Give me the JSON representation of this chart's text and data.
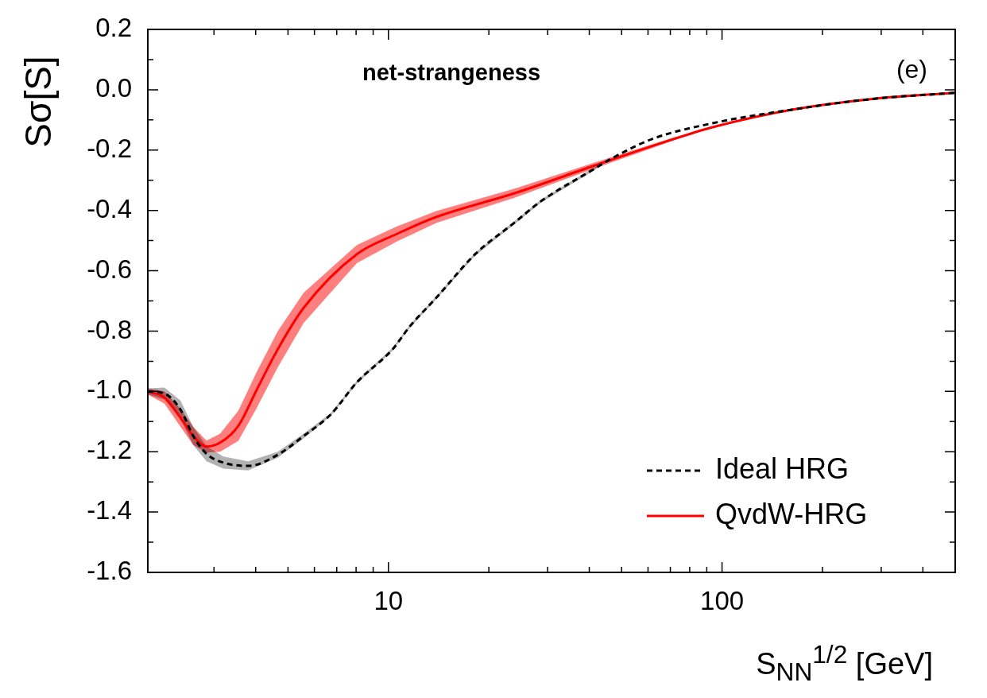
{
  "chart_data": {
    "type": "line",
    "xlabel": "S$_{NN}$$^{1/2}$ [GeV]",
    "ylabel": "Sσ[S]",
    "annotations": [
      "net-strangeness",
      "(e)"
    ],
    "log": "x",
    "legend": "bottom right",
    "marker": "none",
    "xlim": [
      1.9,
      500
    ],
    "ylim": [
      -1.6,
      0.2
    ],
    "xticks": [
      {
        "value": 3,
        "label": null
      },
      {
        "value": 4,
        "label": null
      },
      {
        "value": 5,
        "label": null
      },
      {
        "value": 6,
        "label": null
      },
      {
        "value": 7,
        "label": null
      },
      {
        "value": 8,
        "label": null
      },
      {
        "value": 9,
        "label": null
      },
      10,
      {
        "value": 20,
        "label": null
      },
      {
        "value": 30,
        "label": null
      },
      {
        "value": 40,
        "label": null
      },
      {
        "value": 50,
        "label": null
      },
      {
        "value": 60,
        "label": null
      },
      {
        "value": 70,
        "label": null
      },
      {
        "value": 80,
        "label": null
      },
      {
        "value": 90,
        "label": null
      },
      100,
      {
        "value": 200,
        "label": null
      },
      {
        "value": 300,
        "label": null
      },
      {
        "value": 400,
        "label": null
      }
    ],
    "yticks": [
      -1.6,
      {
        "value": -1.5,
        "label": null
      },
      -1.4,
      {
        "value": -1.3,
        "label": null
      },
      -1.2,
      {
        "value": -1.1,
        "label": null
      },
      {
        "value": -1,
        "label": "-1.0"
      },
      {
        "value": -0.9,
        "label": null
      },
      -0.8,
      {
        "value": -0.7,
        "label": null
      },
      -0.6,
      {
        "value": -0.5,
        "label": null
      },
      -0.4,
      {
        "value": -0.3,
        "label": null
      },
      -0.2,
      {
        "value": -0.1,
        "label": null
      },
      {
        "value": 0,
        "label": "0.0"
      },
      {
        "value": 0.1,
        "label": null
      },
      0.2
    ],
    "series": [
      {
        "name": "Ideal HRG",
        "color": "#000000",
        "line_style": "dashed",
        "x": [
          1.9,
          2.13,
          2.38,
          2.6,
          2.85,
          3.2,
          3.8,
          4.66,
          5.57,
          6.71,
          8.04,
          10.3,
          11.6,
          13.9,
          18.2,
          23.9,
          28.7,
          41.3,
          45.3,
          61.5,
          93.7,
          162,
          279,
          500
        ],
        "values": [
          -1.0,
          -1.007,
          -1.06,
          -1.148,
          -1.207,
          -1.236,
          -1.247,
          -1.21,
          -1.148,
          -1.077,
          -0.97,
          -0.86,
          -0.784,
          -0.69,
          -0.545,
          -0.44,
          -0.369,
          -0.263,
          -0.236,
          -0.164,
          -0.111,
          -0.066,
          -0.031,
          -0.01
        ],
        "lower": [
          -1.01,
          -1.027,
          -1.09,
          -1.178,
          -1.232,
          -1.256,
          -1.262,
          -1.22,
          -1.156,
          -1.082,
          -0.975,
          -0.865,
          -0.789,
          -0.695,
          -0.55,
          -0.445,
          -0.374,
          -0.268,
          -0.236,
          -0.164,
          -0.111,
          -0.066,
          -0.031,
          -0.01
        ],
        "upper": [
          -0.99,
          -0.987,
          -1.03,
          -1.118,
          -1.182,
          -1.216,
          -1.232,
          -1.2,
          -1.14,
          -1.072,
          -0.965,
          -0.855,
          -0.779,
          -0.685,
          -0.54,
          -0.435,
          -0.364,
          -0.258,
          -0.236,
          -0.164,
          -0.111,
          -0.066,
          -0.031,
          -0.01
        ]
      },
      {
        "name": "QvdW-HRG",
        "color": "#ff0000",
        "line_style": "solid",
        "x": [
          1.9,
          2.13,
          2.38,
          2.6,
          2.85,
          3.13,
          3.55,
          4.02,
          4.66,
          5.57,
          8.04,
          10.6,
          13.9,
          23.9,
          41.3,
          71.3,
          93.7,
          162,
          279,
          500
        ],
        "values": [
          -1.0,
          -1.02,
          -1.087,
          -1.148,
          -1.183,
          -1.17,
          -1.114,
          -0.997,
          -0.86,
          -0.723,
          -0.545,
          -0.478,
          -0.422,
          -0.343,
          -0.252,
          -0.164,
          -0.124,
          -0.066,
          -0.031,
          -0.01
        ],
        "lower": [
          -1.01,
          -1.04,
          -1.117,
          -1.178,
          -1.203,
          -1.2,
          -1.164,
          -1.057,
          -0.92,
          -0.773,
          -0.575,
          -0.503,
          -0.442,
          -0.358,
          -0.262,
          -0.169,
          -0.124,
          -0.066,
          -0.031,
          -0.01
        ],
        "upper": [
          -0.99,
          -1.0,
          -1.057,
          -1.118,
          -1.163,
          -1.14,
          -1.064,
          -0.937,
          -0.8,
          -0.673,
          -0.515,
          -0.453,
          -0.402,
          -0.328,
          -0.242,
          -0.159,
          -0.124,
          -0.066,
          -0.031,
          -0.01
        ]
      }
    ]
  }
}
